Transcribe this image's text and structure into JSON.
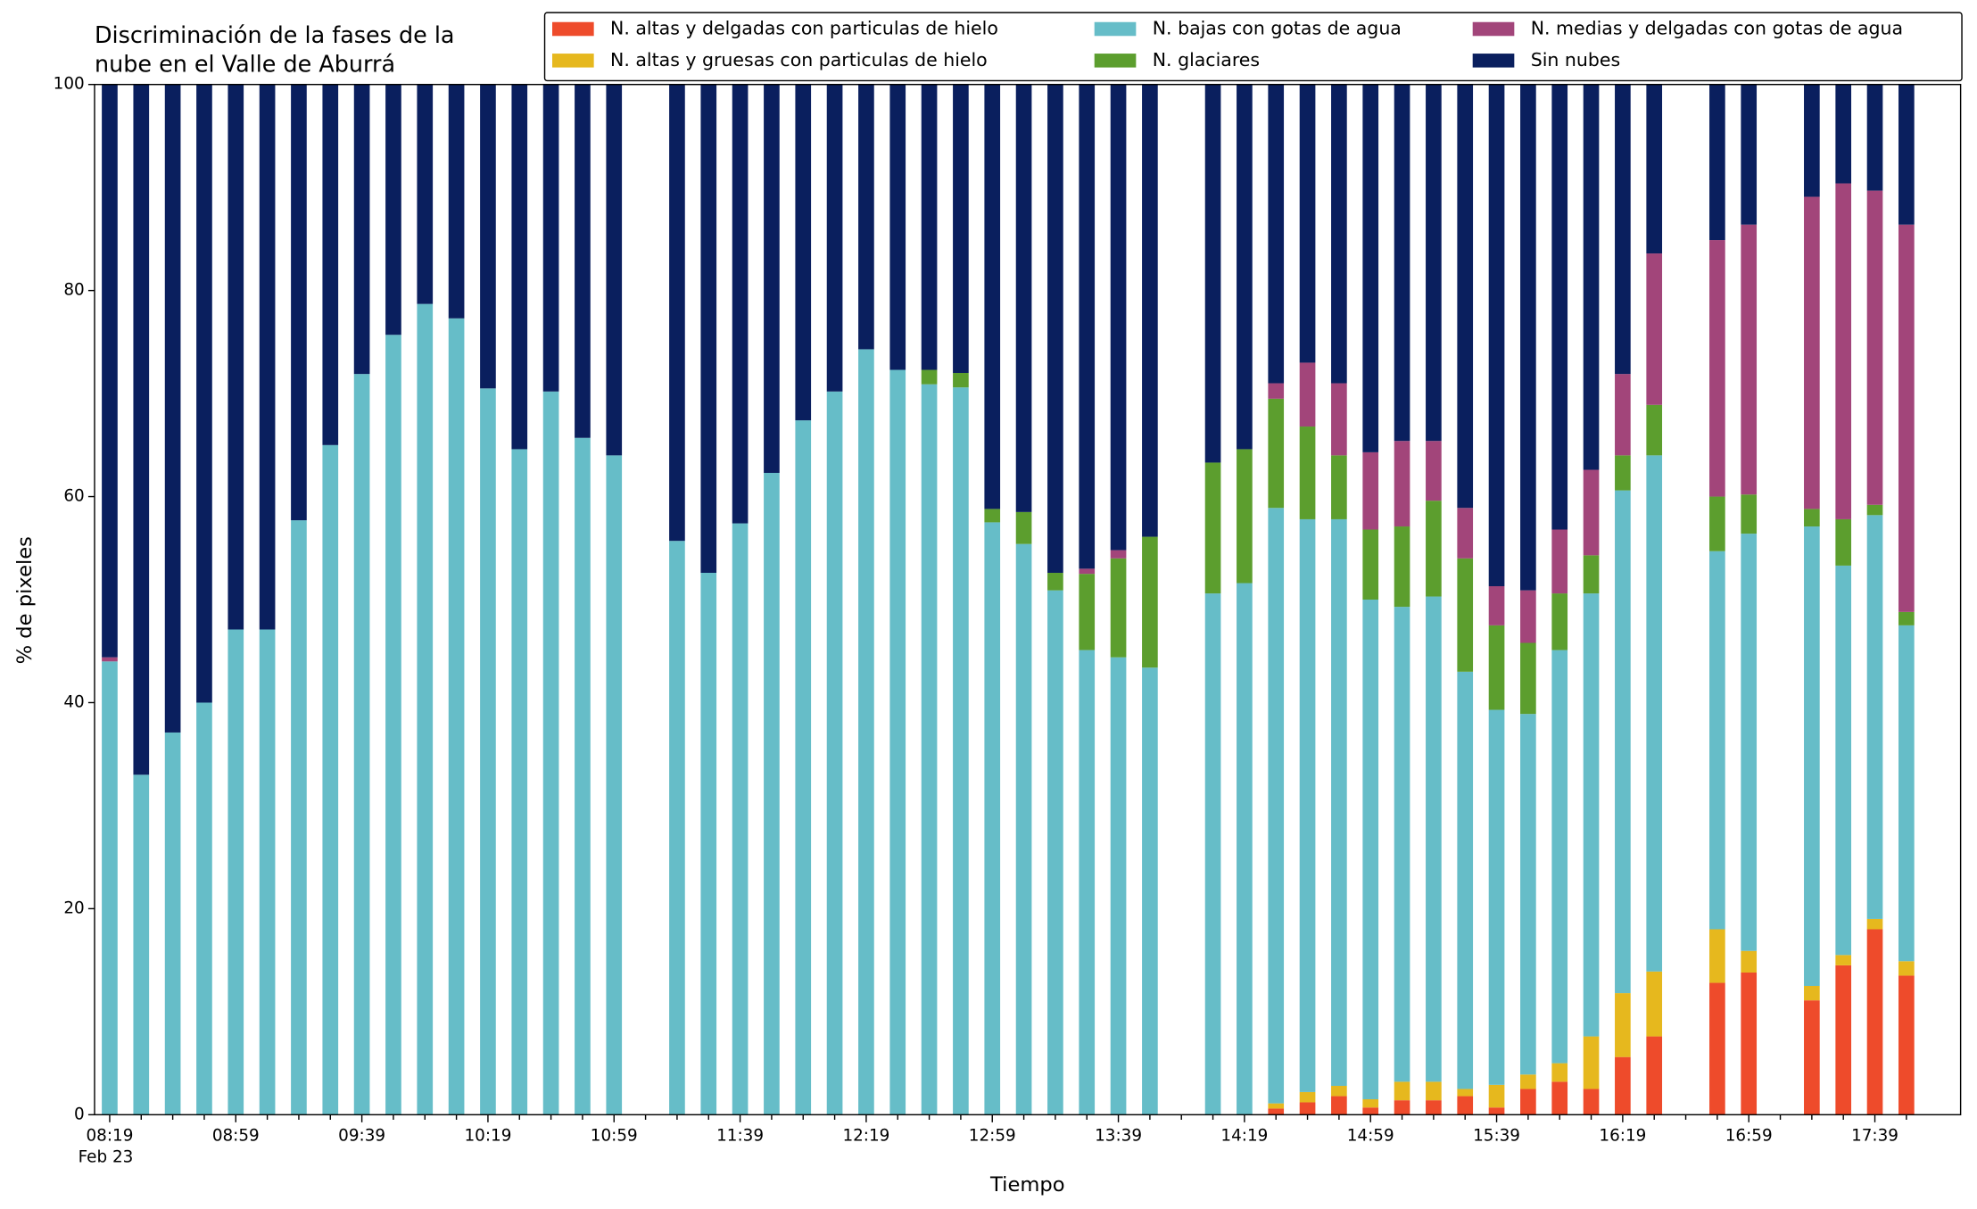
{
  "chart_data": {
    "type": "stacked-bar",
    "title": [
      "Discriminación de la fases de la",
      "nube en el Valle de Aburrá"
    ],
    "xlabel": "Tiempo",
    "ylabel": "% de pixeles",
    "date_label": "Feb 23",
    "categories": [
      "08:19",
      null,
      null,
      null,
      "08:59",
      null,
      null,
      null,
      "09:39",
      null,
      null,
      null,
      "10:19",
      null,
      null,
      null,
      "10:59",
      null,
      null,
      null,
      "11:39",
      null,
      null,
      null,
      "12:19",
      null,
      null,
      null,
      "12:59",
      null,
      null,
      null,
      "13:39",
      null,
      null,
      null,
      "14:19",
      null,
      null,
      null,
      "14:59",
      null,
      null,
      null,
      "15:39",
      null,
      null,
      null,
      "16:19",
      null,
      null,
      null,
      "16:59",
      null,
      null,
      null,
      "17:39",
      null
    ],
    "ylim": [
      0,
      100
    ],
    "yticks": [
      0,
      20,
      40,
      60,
      80,
      100
    ],
    "legend": "top-right",
    "series": [
      {
        "name": "N. altas y delgadas con particulas de hielo",
        "color": "#ee4b2b",
        "values": [
          0,
          0,
          0,
          0,
          0,
          0,
          0,
          0,
          0,
          0,
          0,
          0,
          0,
          0,
          0,
          0,
          0,
          null,
          0,
          0,
          0,
          0,
          0,
          0,
          0,
          0,
          0,
          0,
          0,
          0,
          0,
          0,
          0,
          0,
          null,
          0,
          0,
          0.6,
          1.2,
          1.8,
          0.7,
          1.4,
          1.4,
          1.8,
          0.7,
          2.5,
          3.2,
          2.5,
          5.6,
          7.6,
          null,
          12.8,
          13.8,
          null,
          11.1,
          14.5,
          18.0,
          13.5
        ]
      },
      {
        "name": "N. altas y gruesas con particulas de hielo",
        "color": "#e6b81e",
        "values": [
          0,
          0,
          0,
          0,
          0,
          0,
          0,
          0,
          0,
          0,
          0,
          0,
          0,
          0,
          0,
          0,
          0,
          null,
          0,
          0,
          0,
          0,
          0,
          0,
          0,
          0,
          0,
          0,
          0,
          0,
          0,
          0,
          0,
          0,
          null,
          0,
          0,
          0.5,
          1.0,
          1.0,
          0.8,
          1.8,
          1.8,
          0.7,
          2.2,
          1.4,
          1.8,
          5.1,
          6.2,
          6.3,
          null,
          5.2,
          2.1,
          null,
          1.4,
          1.0,
          1.0,
          1.4
        ]
      },
      {
        "name": "N. bajas con gotas de agua",
        "color": "#66bdc8",
        "values": [
          44,
          33,
          37.1,
          40,
          47.1,
          47.1,
          57.7,
          65,
          71.9,
          75.7,
          78.7,
          77.3,
          70.5,
          64.6,
          70.2,
          65.7,
          64,
          null,
          55.7,
          52.6,
          57.4,
          62.3,
          67.4,
          70.2,
          74.3,
          72.3,
          70.9,
          70.6,
          57.5,
          55.4,
          50.9,
          45.1,
          44.4,
          43.4,
          null,
          50.6,
          51.6,
          57.8,
          55.6,
          55.0,
          48.5,
          46.1,
          47.1,
          40.5,
          36.4,
          35.0,
          40.1,
          43.0,
          48.8,
          50.1,
          null,
          36.7,
          40.5,
          null,
          44.6,
          37.8,
          39.2,
          32.6
        ]
      },
      {
        "name": "N. glaciares",
        "color": "#5c9e2e",
        "values": [
          0,
          0,
          0,
          0,
          0,
          0,
          0,
          0,
          0,
          0,
          0,
          0,
          0,
          0,
          0,
          0,
          0,
          null,
          0,
          0,
          0,
          0,
          0,
          0,
          0,
          0,
          1.4,
          1.4,
          1.3,
          3.1,
          1.7,
          7.4,
          9.6,
          12.7,
          null,
          12.7,
          13.0,
          10.6,
          9.0,
          6.2,
          6.8,
          7.8,
          9.3,
          11.0,
          8.2,
          6.9,
          5.5,
          3.7,
          3.4,
          4.9,
          null,
          5.3,
          3.8,
          null,
          1.7,
          4.5,
          1.0,
          1.3
        ]
      },
      {
        "name": "N. medias y delgadas con gotas de agua",
        "color": "#a2457a",
        "values": [
          0.4,
          0,
          0,
          0,
          0,
          0,
          0,
          0,
          0,
          0,
          0,
          0,
          0,
          0,
          0,
          0,
          0,
          null,
          0,
          0,
          0,
          0,
          0,
          0,
          0,
          0,
          0,
          0,
          0,
          0,
          0,
          0.5,
          0.8,
          0,
          null,
          0,
          0,
          1.5,
          6.2,
          7.0,
          7.5,
          8.3,
          5.8,
          4.9,
          3.8,
          5.1,
          6.2,
          8.3,
          7.9,
          14.7,
          null,
          24.9,
          26.2,
          null,
          30.3,
          32.6,
          30.5,
          37.6
        ]
      },
      {
        "name": "Sin nubes",
        "color": "#0a1f5e",
        "values": [
          55.6,
          67,
          62.9,
          60,
          52.9,
          52.9,
          42.3,
          35,
          28.1,
          24.3,
          21.3,
          22.7,
          29.5,
          35.4,
          29.8,
          34.3,
          36,
          null,
          44.3,
          47.4,
          42.6,
          37.7,
          32.6,
          29.8,
          25.7,
          27.7,
          27.7,
          28.0,
          41.2,
          41.5,
          47.4,
          47.0,
          45.2,
          43.9,
          null,
          36.7,
          35.4,
          29.0,
          27.0,
          29.0,
          35.7,
          34.6,
          34.6,
          41.1,
          48.7,
          49.1,
          43.2,
          37.4,
          28.1,
          16.4,
          null,
          15.1,
          13.6,
          null,
          10.9,
          9.6,
          10.3,
          13.6
        ]
      }
    ]
  }
}
